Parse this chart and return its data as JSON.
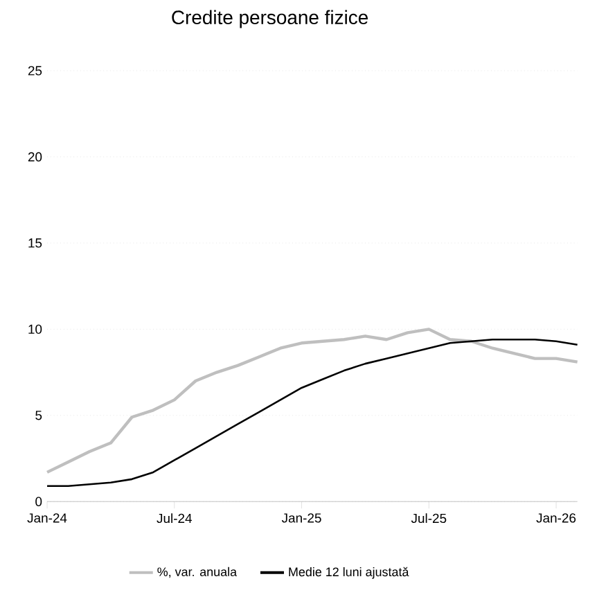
{
  "chart_data": {
    "type": "line",
    "title": "Credite persoane fizice",
    "x": [
      "2024-01",
      "2024-02",
      "2024-03",
      "2024-04",
      "2024-05",
      "2024-06",
      "2024-07",
      "2024-08",
      "2024-09",
      "2024-10",
      "2024-11",
      "2024-12",
      "2025-01",
      "2025-02",
      "2025-03",
      "2025-04",
      "2025-05",
      "2025-06",
      "2025-07",
      "2025-08",
      "2025-09",
      "2025-10",
      "2025-11",
      "2025-12",
      "2026-01",
      "2026-02"
    ],
    "series": [
      {
        "name": "%, var. anuala",
        "color": "#bfbfbf",
        "values": [
          1.7,
          2.3,
          2.9,
          3.4,
          4.9,
          5.3,
          5.9,
          7.0,
          7.5,
          7.9,
          8.4,
          8.9,
          9.2,
          9.3,
          9.4,
          9.6,
          9.4,
          9.8,
          10.0,
          9.4,
          9.3,
          8.9,
          8.6,
          8.3,
          8.3,
          8.1
        ]
      },
      {
        "name": "Medie 12 luni ajustată",
        "color": "#000000",
        "values": [
          0.9,
          0.9,
          1.0,
          1.1,
          1.3,
          1.7,
          2.4,
          3.1,
          3.8,
          4.5,
          5.2,
          5.9,
          6.6,
          7.1,
          7.6,
          8.0,
          8.3,
          8.6,
          8.9,
          9.2,
          9.3,
          9.4,
          9.4,
          9.4,
          9.3,
          9.1
        ]
      }
    ],
    "xlim": [
      "2024-01",
      "2026-02"
    ],
    "xticks": [
      {
        "value": "2024-01",
        "label": "Jan-24"
      },
      {
        "value": "2024-07",
        "label": "Jul-24"
      },
      {
        "value": "2025-01",
        "label": "Jan-25"
      },
      {
        "value": "2025-07",
        "label": "Jul-25"
      },
      {
        "value": "2026-01",
        "label": "Jan-26"
      }
    ],
    "ylim": [
      0,
      25
    ],
    "yticks": [
      0,
      5,
      10,
      15,
      20,
      25
    ],
    "grid": "y",
    "legend": "bottom",
    "marker": "none",
    "line_style": "solid"
  }
}
